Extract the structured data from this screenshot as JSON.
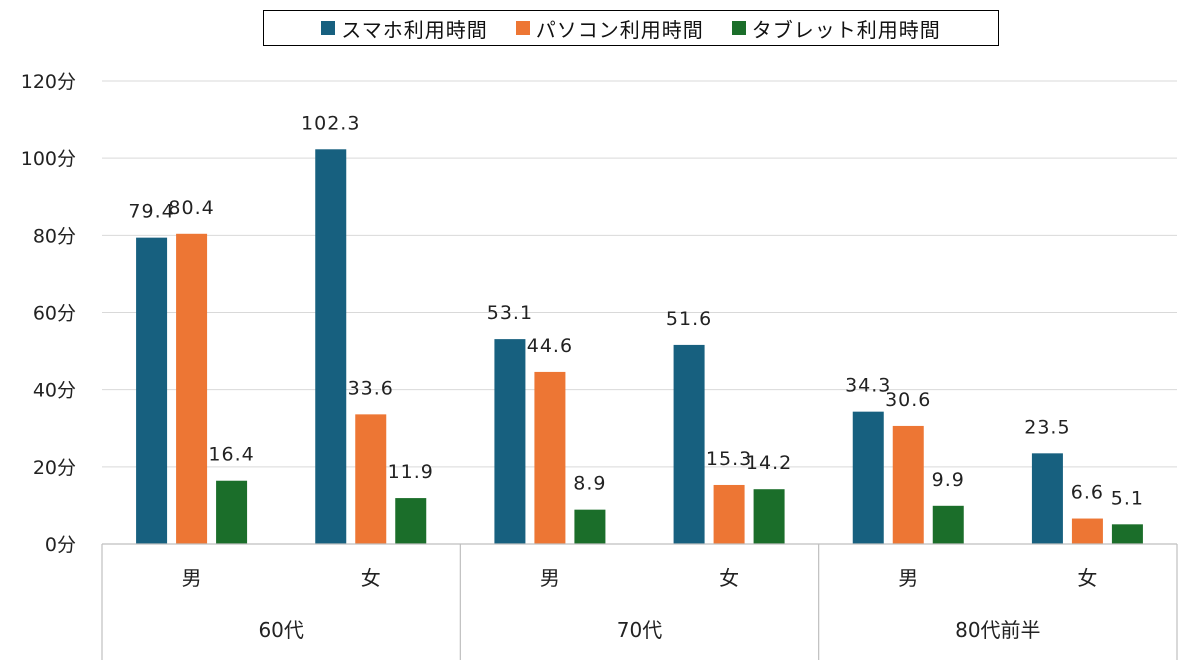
{
  "chart_data": {
    "type": "bar",
    "legend": {
      "placement": "top",
      "entries": [
        "スマホ利用時間",
        "パソコン利用時間",
        "タブレット利用時間"
      ]
    },
    "groups": [
      {
        "label": "60代",
        "categories": [
          "男",
          "女"
        ]
      },
      {
        "label": "70代",
        "categories": [
          "男",
          "女"
        ]
      },
      {
        "label": "80代前半",
        "categories": [
          "男",
          "女"
        ]
      }
    ],
    "series": [
      {
        "name": "スマホ利用時間",
        "color": "#17607f",
        "values": [
          79.4,
          102.3,
          53.1,
          51.6,
          34.3,
          23.5
        ]
      },
      {
        "name": "パソコン利用時間",
        "color": "#ed7634",
        "values": [
          80.4,
          33.6,
          44.6,
          15.3,
          30.6,
          6.6
        ]
      },
      {
        "name": "タブレット利用時間",
        "color": "#1b6e2a",
        "values": [
          16.4,
          11.9,
          8.9,
          14.2,
          9.9,
          5.1
        ]
      }
    ],
    "data_labels": [
      [
        "79.4",
        "102.3",
        "53.1",
        "51.6",
        "34.3",
        "23.5"
      ],
      [
        "80.4",
        "33.6",
        "44.6",
        "15.3",
        "30.6",
        "6.6"
      ],
      [
        "16.4",
        "11.9",
        "8.9",
        "14.2",
        "9.9",
        "5.1"
      ]
    ],
    "ylim": [
      0,
      120
    ],
    "yticks": [
      "0分",
      "20分",
      "40分",
      "60分",
      "80分",
      "100分",
      "120分"
    ],
    "grid": true
  }
}
